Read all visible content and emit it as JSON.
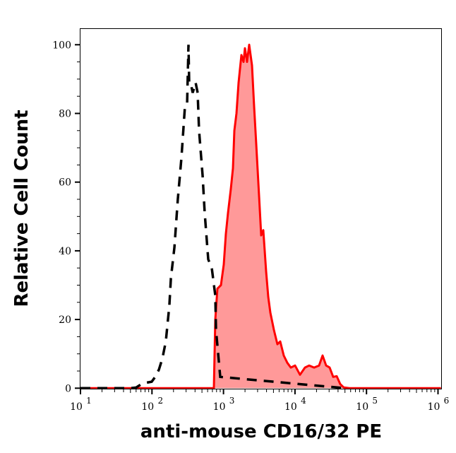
{
  "chart_data": {
    "type": "area",
    "xlabel": "anti-mouse CD16/32 PE",
    "ylabel": "Relative Cell Count",
    "x_scale": "log",
    "xlim": [
      10,
      1100000
    ],
    "ylim": [
      0,
      104.8
    ],
    "x_ticks": [
      10,
      100,
      1000,
      10000,
      100000,
      1000000
    ],
    "x_tick_labels": [
      {
        "base": "10",
        "exp": "1"
      },
      {
        "base": "10",
        "exp": "2"
      },
      {
        "base": "10",
        "exp": "3"
      },
      {
        "base": "10",
        "exp": "4"
      },
      {
        "base": "10",
        "exp": "5"
      },
      {
        "base": "10",
        "exp": "6"
      }
    ],
    "y_ticks": [
      0,
      20,
      40,
      60,
      80,
      100
    ],
    "y_tick_labels": [
      "0",
      "20",
      "40",
      "60",
      "80",
      "100"
    ],
    "grid": false,
    "legend": "none",
    "series": [
      {
        "style": "dashed-line",
        "color": "#000000",
        "x": [
          10,
          50,
          60,
          74,
          99,
          111,
          125,
          140,
          156,
          175,
          184,
          206,
          230,
          258,
          289,
          310,
          324,
          331,
          347,
          371,
          407,
          435,
          455,
          510,
          546,
          612,
          686,
          768,
          786,
          901,
          50000
        ],
        "y": [
          0,
          0,
          0.2,
          1.4,
          1.9,
          3.3,
          5.4,
          8.7,
          13.6,
          24,
          32,
          41,
          55,
          67,
          82,
          83,
          100,
          89,
          89,
          86,
          89,
          86,
          75,
          62,
          51,
          37.5,
          35,
          27,
          17,
          3.3,
          0
        ]
      },
      {
        "style": "filled-area",
        "color": "#ff0000",
        "fill": "#ff9999",
        "x": [
          10,
          734,
          768,
          822,
          921,
          1009,
          1081,
          1157,
          1268,
          1357,
          1420,
          1520,
          1627,
          1782,
          1906,
          1995,
          2138,
          2287,
          2506,
          2682,
          2871,
          3146,
          3367,
          3606,
          3948,
          4226,
          4522,
          5070,
          5680,
          6223,
          6969,
          7804,
          8748,
          10020,
          11750,
          13780,
          15790,
          18530,
          21730,
          24340,
          27240,
          30530,
          34200,
          38280,
          42950,
          48100,
          57680,
          1100000
        ],
        "y": [
          0,
          0,
          20,
          29,
          30,
          36,
          45,
          51,
          58,
          64,
          75,
          80,
          89,
          97,
          95,
          99,
          95,
          100,
          94,
          82,
          71,
          56,
          44.5,
          46,
          34,
          26.6,
          22,
          17,
          12.8,
          13.6,
          9.5,
          7.4,
          6,
          6.6,
          3.9,
          6,
          6.6,
          6,
          6.6,
          9.5,
          6.6,
          6,
          3.3,
          3.5,
          1.2,
          0.2,
          0,
          0
        ]
      }
    ]
  }
}
